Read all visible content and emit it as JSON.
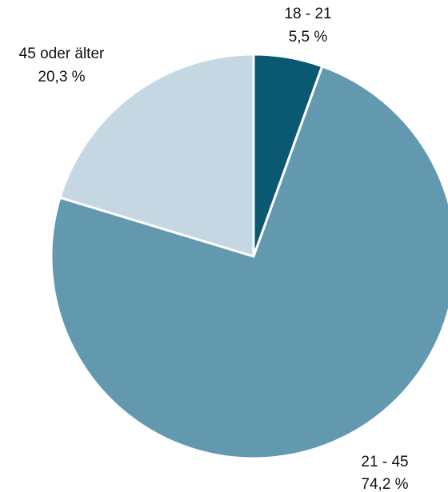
{
  "chart_data": {
    "type": "pie",
    "title": "",
    "start_angle_deg": 0,
    "direction": "clockwise",
    "slices": [
      {
        "label": "18 - 21",
        "value": 5.5,
        "value_label": "5,5 %",
        "color": "#0b5873"
      },
      {
        "label": "21 - 45",
        "value": 74.2,
        "value_label": "74,2 %",
        "color": "#6399ae"
      },
      {
        "label": "45 oder älter",
        "value": 20.3,
        "value_label": "20,3 %",
        "color": "#c5d7e3"
      }
    ],
    "separator_color": "#ffffff"
  }
}
